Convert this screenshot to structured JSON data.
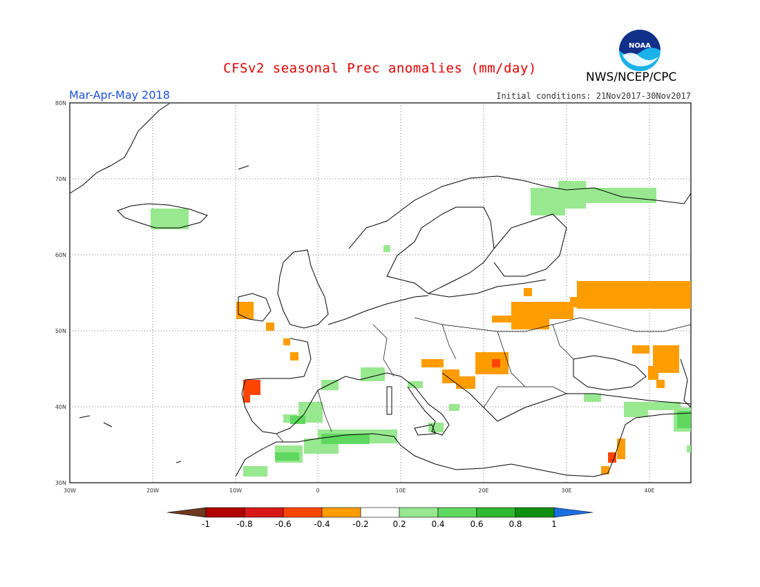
{
  "header": {
    "title": "CFSv2 seasonal Prec anomalies (mm/day)",
    "period": "Mar-Apr-May 2018",
    "initial_conditions": "Initial conditions: 21Nov2017-30Nov2017",
    "agency": "NWS/NCEP/CPC",
    "logo_text": "NOAA"
  },
  "axes": {
    "lat_labels": [
      "80N",
      "70N",
      "60N",
      "50N",
      "40N",
      "30N"
    ],
    "lon_labels": [
      "30W",
      "20W",
      "10W",
      "0",
      "10E",
      "20E",
      "30E",
      "40E"
    ]
  },
  "colorbar": {
    "labels": [
      "-1",
      "-0.8",
      "-0.6",
      "-0.4",
      "-0.2",
      "0.2",
      "0.4",
      "0.6",
      "0.8",
      "1"
    ],
    "colors": [
      "#6b3a1f",
      "#b00000",
      "#d81818",
      "#ff4500",
      "#ff9d00",
      "#ffffff",
      "#98e890",
      "#60d860",
      "#30b830",
      "#109010",
      "#1a6fe0"
    ]
  },
  "colors": {
    "light_green": "#98e890",
    "mid_green": "#60d860",
    "orange": "#ff9d00",
    "dark_orange": "#ff4500",
    "red": "#d81818",
    "title_red": "#e00000",
    "period_blue": "#1a4fe0"
  }
}
